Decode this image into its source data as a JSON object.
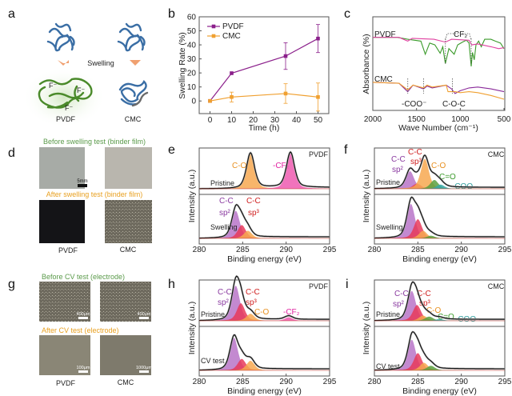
{
  "panel_labels": {
    "a": "a",
    "b": "b",
    "c": "c",
    "d": "d",
    "e": "e",
    "f": "f",
    "g": "g",
    "h": "h",
    "i": "i"
  },
  "panel_a": {
    "swelling": "Swelling",
    "pvdf": "PVDF",
    "cmc": "CMC",
    "f_ion": "F⁻",
    "colors": {
      "pristine_chain": "#3a6ea5",
      "pvdf_swollen": "#4a8a2a",
      "cmc_tail": "#6a6a6a",
      "arrow": "#f0a070"
    }
  },
  "panel_d": {
    "before": "Before swelling test (binder film)",
    "after": "After swelling test (binder film)",
    "scale": "5mm",
    "pvdf": "PVDF",
    "cmc": "CMC"
  },
  "panel_g": {
    "before": "Before CV test (electrode)",
    "after": "After CV test (electrode)",
    "scales": [
      "400μm",
      "400μm",
      "100μm",
      "1000μm"
    ],
    "pvdf": "PVDF",
    "cmc": "CMC"
  },
  "colors": {
    "before_title": "#5a9a4a",
    "after_title": "#e8a020"
  },
  "chart_data": [
    {
      "id": "b",
      "type": "line",
      "xlabel": "Time (h)",
      "ylabel": "Swelling Rate (%)",
      "xlim": [
        -5,
        55
      ],
      "ylim": [
        -9,
        60
      ],
      "xticks": [
        "0",
        "10",
        "20",
        "30",
        "40",
        "50"
      ],
      "yticks": [
        "0",
        "10",
        "20",
        "30",
        "40",
        "50",
        "60"
      ],
      "legend": "top-left",
      "x": [
        0,
        10,
        35,
        50
      ],
      "series": [
        {
          "name": "PVDF",
          "color": "#8b1f8b",
          "values": [
            0,
            19.8,
            32,
            44.5
          ],
          "errors": [
            0,
            0,
            9.5,
            10
          ]
        },
        {
          "name": "CMC",
          "color": "#f0a030",
          "values": [
            0,
            2.8,
            5.3,
            2.8
          ],
          "errors": [
            0,
            3.5,
            7,
            10
          ]
        }
      ]
    },
    {
      "id": "c",
      "type": "line",
      "xlabel": "Wave Number (cm⁻¹)",
      "ylabel": "Absorbance (%)",
      "xlim": [
        2000,
        500
      ],
      "xticks": [
        "2000",
        "1500",
        "1000",
        "500"
      ],
      "group_labels": [
        "PVDF",
        "CMC"
      ],
      "annotations": {
        "cf2": "CF₂",
        "coo": "-COO⁻",
        "coc": "C-O-C"
      },
      "annotation_positions_cm1": {
        "cf2": [
          1170,
          875
        ],
        "coo": [
          1600,
          1420
        ],
        "coc": [
          1090
        ]
      },
      "series": [
        {
          "group": "PVDF",
          "color": "#3a9a2a",
          "points": [
            [
              2000,
              0.78
            ],
            [
              1720,
              0.78
            ],
            [
              1600,
              0.76
            ],
            [
              1450,
              0.74
            ],
            [
              1400,
              0.6
            ],
            [
              1350,
              0.72
            ],
            [
              1290,
              0.7
            ],
            [
              1230,
              0.61
            ],
            [
              1200,
              0.68
            ],
            [
              1170,
              0.5
            ],
            [
              1130,
              0.66
            ],
            [
              1070,
              0.6
            ],
            [
              1030,
              0.7
            ],
            [
              975,
              0.73
            ],
            [
              930,
              0.75
            ],
            [
              900,
              0.72
            ],
            [
              875,
              0.47
            ],
            [
              860,
              0.62
            ],
            [
              840,
              0.54
            ],
            [
              820,
              0.7
            ],
            [
              790,
              0.74
            ],
            [
              760,
              0.68
            ],
            [
              720,
              0.76
            ],
            [
              650,
              0.76
            ],
            [
              600,
              0.74
            ],
            [
              540,
              0.72
            ],
            [
              500,
              0.66
            ]
          ]
        },
        {
          "group": "PVDF",
          "color": "#e040a0",
          "points": [
            [
              2000,
              0.78
            ],
            [
              1700,
              0.78
            ],
            [
              1600,
              0.74
            ],
            [
              1550,
              0.77
            ],
            [
              1300,
              0.76
            ],
            [
              1170,
              0.73
            ],
            [
              1100,
              0.76
            ],
            [
              900,
              0.75
            ],
            [
              870,
              0.7
            ],
            [
              800,
              0.71
            ],
            [
              650,
              0.68
            ],
            [
              560,
              0.66
            ],
            [
              500,
              0.67
            ]
          ]
        },
        {
          "group": "CMC",
          "color": "#8a2a9a",
          "points": [
            [
              2000,
              0.3
            ],
            [
              1700,
              0.29
            ],
            [
              1600,
              0.2
            ],
            [
              1540,
              0.27
            ],
            [
              1420,
              0.23
            ],
            [
              1380,
              0.26
            ],
            [
              1320,
              0.24
            ],
            [
              1160,
              0.27
            ],
            [
              1100,
              0.23
            ],
            [
              1060,
              0.18
            ],
            [
              1000,
              0.21
            ],
            [
              900,
              0.24
            ],
            [
              800,
              0.25
            ],
            [
              650,
              0.23
            ],
            [
              500,
              0.2
            ]
          ]
        },
        {
          "group": "CMC",
          "color": "#f0a030",
          "points": [
            [
              2000,
              0.3
            ],
            [
              1700,
              0.29
            ],
            [
              1600,
              0.22
            ],
            [
              1540,
              0.27
            ],
            [
              1420,
              0.24
            ],
            [
              1380,
              0.27
            ],
            [
              1320,
              0.25
            ],
            [
              1160,
              0.27
            ],
            [
              1140,
              0.2
            ],
            [
              1060,
              0.2
            ],
            [
              1000,
              0.19
            ],
            [
              900,
              0.2
            ],
            [
              800,
              0.19
            ],
            [
              650,
              0.16
            ],
            [
              500,
              0.12
            ]
          ]
        }
      ]
    },
    {
      "id": "e",
      "type": "area",
      "xlabel": "Binding energy (eV)",
      "ylabel": "Intensity (a.u.)",
      "xlim": [
        280,
        295
      ],
      "xticks": [
        "280",
        "285",
        "290",
        "295"
      ],
      "sample": "PVDF",
      "spectra": [
        {
          "label": "Pristine",
          "peaks": [
            {
              "name": "C-O",
              "center": 285.9,
              "height": 1.0,
              "color": "#f7a850"
            },
            {
              "name": "-CF₂",
              "center": 290.5,
              "height": 1.0,
              "color": "#ee5ab0"
            }
          ]
        },
        {
          "label": "Swelling",
          "peaks": [
            {
              "name": "C-C sp²",
              "center": 284.2,
              "height": 0.72,
              "color": "#b874c8"
            },
            {
              "name": "C-C sp³",
              "center": 284.9,
              "height": 0.35,
              "color": "#e83a5a"
            },
            {
              "name": "C-O",
              "center": 285.6,
              "height": 0.2,
              "color": "#f7a850"
            }
          ]
        }
      ],
      "labels": {
        "co": "C-O",
        "cf2": "-CF₂",
        "cc": "C-C",
        "sp2": "sp²",
        "sp3": "sp³"
      }
    },
    {
      "id": "f",
      "type": "area",
      "xlabel": "Binding energy (eV)",
      "ylabel": "Intensity (a.u.)",
      "xlim": [
        280,
        295
      ],
      "xticks": [
        "280",
        "285",
        "290",
        "295"
      ],
      "sample": "CMC",
      "spectra": [
        {
          "label": "Pristine",
          "peaks": [
            {
              "name": "C-C sp²",
              "center": 284.1,
              "height": 0.5,
              "color": "#b874c8"
            },
            {
              "name": "C-C sp³",
              "center": 284.9,
              "height": 0.15,
              "color": "#e83a5a"
            },
            {
              "name": "C-O",
              "center": 285.8,
              "height": 0.85,
              "color": "#f7a850"
            },
            {
              "name": "C=O",
              "center": 286.9,
              "height": 0.25,
              "color": "#5aa040"
            },
            {
              "name": "-COO",
              "center": 287.6,
              "height": 0.12,
              "color": "#3aa8a8"
            }
          ]
        },
        {
          "label": "Swelling",
          "peaks": [
            {
              "name": "C-C sp²",
              "center": 284.2,
              "height": 0.9,
              "color": "#b874c8"
            },
            {
              "name": "C-C sp³",
              "center": 285.0,
              "height": 0.5,
              "color": "#e83a5a"
            },
            {
              "name": "C-O",
              "center": 285.6,
              "height": 0.2,
              "color": "#f7a850"
            },
            {
              "name": "C=O",
              "center": 286.5,
              "height": 0.07,
              "color": "#5aa040"
            }
          ]
        }
      ],
      "labels": {
        "cc": "C-C",
        "sp2": "sp²",
        "sp3": "sp³",
        "co": "C-O",
        "c_o": "C=O",
        "coo": "-COO"
      }
    },
    {
      "id": "h",
      "type": "area",
      "xlabel": "Binding energy (eV)",
      "ylabel": "Intensity (a.u.)",
      "xlim": [
        280,
        295
      ],
      "xticks": [
        "280",
        "285",
        "290",
        "295"
      ],
      "sample": "PVDF",
      "spectra": [
        {
          "label": "Pristine",
          "peaks": [
            {
              "name": "C-C sp²",
              "center": 284.2,
              "height": 1.0,
              "color": "#b874c8"
            },
            {
              "name": "C-C sp³",
              "center": 284.8,
              "height": 0.5,
              "color": "#e83a5a"
            },
            {
              "name": "C-O",
              "center": 285.9,
              "height": 0.2,
              "color": "#f7a850"
            },
            {
              "name": "-CF₂",
              "center": 290.3,
              "height": 0.1,
              "color": "#ee5ab0"
            }
          ]
        },
        {
          "label": "CV test",
          "peaks": [
            {
              "name": "C-C sp²",
              "center": 284.0,
              "height": 0.85,
              "color": "#b874c8"
            },
            {
              "name": "C-C sp³",
              "center": 284.9,
              "height": 0.3,
              "color": "#e83a5a"
            },
            {
              "name": "C-O",
              "center": 285.9,
              "height": 0.25,
              "color": "#f7a850"
            }
          ]
        }
      ],
      "labels": {
        "cc": "C-C",
        "sp2": "sp²",
        "sp3": "sp³",
        "co": "C-O",
        "cf2": "-CF₂"
      }
    },
    {
      "id": "i",
      "type": "area",
      "xlabel": "Binding energy (eV)",
      "ylabel": "Intensity (a.u.)",
      "xlim": [
        280,
        295
      ],
      "xticks": [
        "280",
        "285",
        "290",
        "295"
      ],
      "sample": "CMC",
      "spectra": [
        {
          "label": "Pristine",
          "peaks": [
            {
              "name": "C-C sp²",
              "center": 284.3,
              "height": 0.85,
              "color": "#b874c8"
            },
            {
              "name": "C-C sp³",
              "center": 284.9,
              "height": 0.45,
              "color": "#e83a5a"
            },
            {
              "name": "C-O",
              "center": 285.6,
              "height": 0.15,
              "color": "#f7a850"
            },
            {
              "name": "C=O",
              "center": 286.3,
              "height": 0.12,
              "color": "#5aa040"
            },
            {
              "name": "-COO",
              "center": 287.5,
              "height": 0.05,
              "color": "#3aa8a8"
            }
          ]
        },
        {
          "label": "CV test",
          "peaks": [
            {
              "name": "C-C sp²",
              "center": 284.3,
              "height": 0.8,
              "color": "#b874c8"
            },
            {
              "name": "C-C sp³",
              "center": 285.0,
              "height": 0.45,
              "color": "#e83a5a"
            },
            {
              "name": "C-O",
              "center": 285.7,
              "height": 0.2,
              "color": "#f7a850"
            },
            {
              "name": "C=O",
              "center": 286.5,
              "height": 0.12,
              "color": "#5aa040"
            }
          ]
        }
      ],
      "labels": {
        "cc": "C-C",
        "sp2": "sp²",
        "sp3": "sp³",
        "co": "C-O",
        "c_o": "C=O",
        "coo": "-COO"
      }
    }
  ]
}
